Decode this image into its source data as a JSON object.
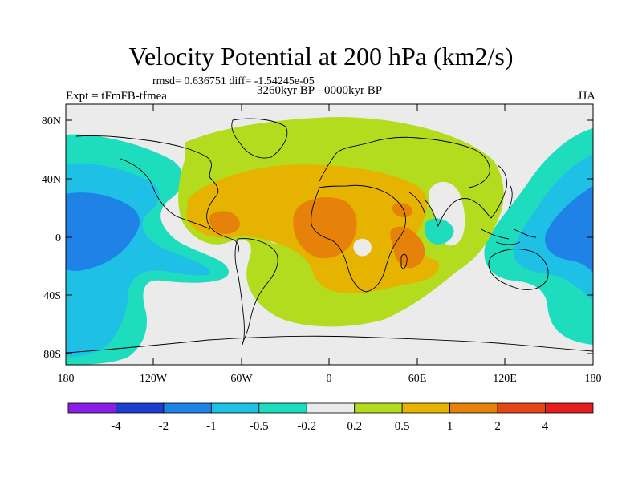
{
  "title": "Velocity Potential at 200 hPa (km2/s)",
  "stats": "rmsd= 0.636751 diff= -1.54245e-05",
  "experiment": "Expt = tFmFB-tfmea",
  "period": "3260kyr BP - 0000kyr BP",
  "season": "JJA",
  "axes": {
    "lat_labels": [
      "80N",
      "40N",
      "0",
      "40S",
      "80S"
    ],
    "lon_labels": [
      "180",
      "120W",
      "60W",
      "0",
      "60E",
      "120E",
      "180"
    ]
  },
  "colorbar": {
    "colors": [
      "#8a1ee6",
      "#1e3cd2",
      "#1e82e6",
      "#1ec0e6",
      "#1edcbe",
      "#ebebeb",
      "#b4dc1e",
      "#e6b400",
      "#e6820a",
      "#e64614",
      "#e61e1e"
    ],
    "labels": [
      "-4",
      "-2",
      "-1",
      "-0.5",
      "-0.2",
      "0.2",
      "0.5",
      "1",
      "2",
      "4"
    ]
  },
  "colors": {
    "background": "#ebebeb",
    "coast": "#000000"
  }
}
